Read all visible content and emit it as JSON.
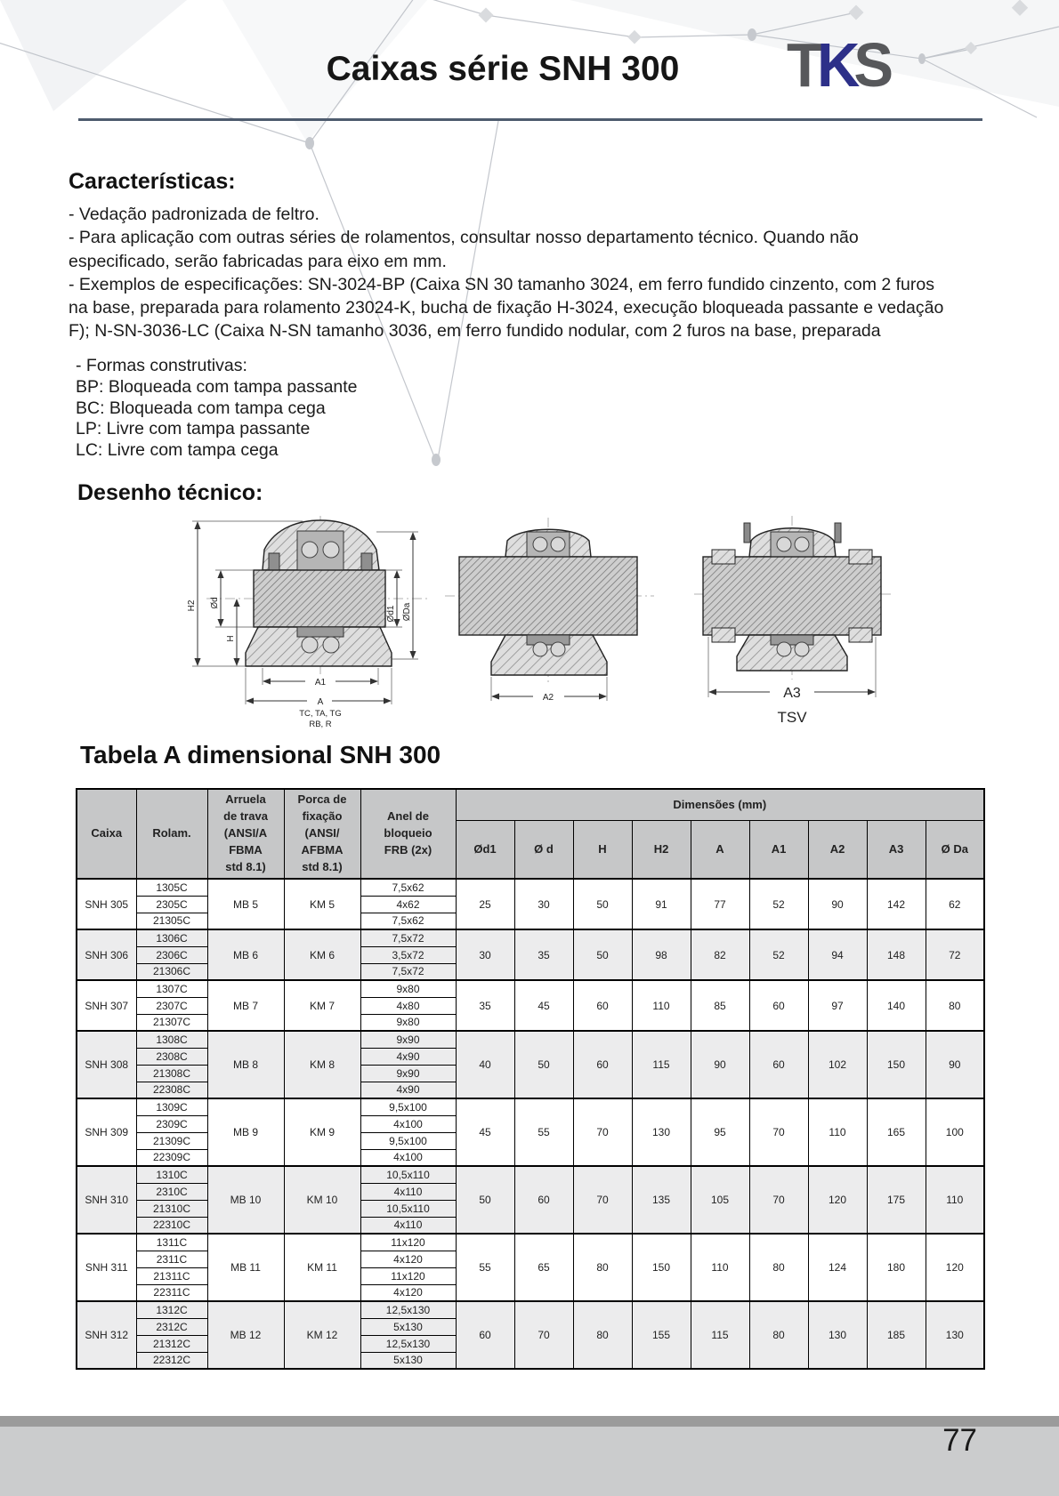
{
  "header": {
    "title": "Caixas série SNH 300",
    "logo": {
      "t": "T",
      "k": "K",
      "s": "S"
    }
  },
  "caracteristicas": {
    "heading": "Características:",
    "lines": [
      "- Vedação padronizada de feltro.",
      "- Para aplicação com outras séries de rolamentos, consultar nosso departamento técnico. Quando não",
      "especificado, serão fabricadas para eixo em mm.",
      "- Exemplos de especificações: SN-3024-BP (Caixa SN 30 tamanho 3024, em ferro fundido cinzento, com 2 furos",
      "na base, preparada para rolamento 23024-K, bucha de fixação H-3024, execução bloqueada passante e vedação",
      "F); N-SN-3036-LC (Caixa N-SN tamanho 3036, em ferro fundido nodular, com 2 furos na base, preparada"
    ],
    "formas_heading": "- Formas construtivas:",
    "formas": [
      "BP: Bloqueada com tampa passante",
      "BC: Bloqueada com tampa cega",
      "LP: Livre com tampa passante",
      "LC: Livre com tampa cega"
    ]
  },
  "desenho": {
    "heading": "Desenho técnico:",
    "d1": {
      "h2": "H2",
      "od": "Ød",
      "h": "H",
      "od1": "Ød1",
      "oda": "ØDa",
      "a1": "A1",
      "a": "A",
      "sub1": "TC, TA, TG",
      "sub2": "RB, R"
    },
    "d2": {
      "a2": "A2"
    },
    "d3": {
      "a3": "A3",
      "label": "TSV"
    }
  },
  "tabela": {
    "heading": "Tabela A dimensional SNH 300",
    "col_caixa": "Caixa",
    "col_rolam": "Rolam.",
    "col_arruela": "Arruela\nde trava\n(ANSI/A\nFBMA\nstd 8.1)",
    "col_porca": "Porca de\nfixação\n(ANSI/\nAFBMA\nstd 8.1)",
    "col_anel": "Anel de\nbloqueio\nFRB (2x)",
    "col_dim_group": "Dimensões (mm)",
    "dim_cols": [
      "Ød1",
      "Ø d",
      "H",
      "H2",
      "A",
      "A1",
      "A2",
      "A3",
      "Ø Da"
    ],
    "rows": [
      {
        "caixa": "SNH 305",
        "rolam": [
          "1305C",
          "2305C",
          "21305C"
        ],
        "arruela": "MB 5",
        "porca": "KM 5",
        "anel": [
          "7,5x62",
          "4x62",
          "7,5x62"
        ],
        "dims": [
          "25",
          "30",
          "50",
          "91",
          "77",
          "52",
          "90",
          "142",
          "62"
        ]
      },
      {
        "caixa": "SNH 306",
        "rolam": [
          "1306C",
          "2306C",
          "21306C"
        ],
        "arruela": "MB 6",
        "porca": "KM 6",
        "anel": [
          "7,5x72",
          "3,5x72",
          "7,5x72"
        ],
        "dims": [
          "30",
          "35",
          "50",
          "98",
          "82",
          "52",
          "94",
          "148",
          "72"
        ]
      },
      {
        "caixa": "SNH 307",
        "rolam": [
          "1307C",
          "2307C",
          "21307C"
        ],
        "arruela": "MB 7",
        "porca": "KM 7",
        "anel": [
          "9x80",
          "4x80",
          "9x80"
        ],
        "dims": [
          "35",
          "45",
          "60",
          "110",
          "85",
          "60",
          "97",
          "140",
          "80"
        ]
      },
      {
        "caixa": "SNH 308",
        "rolam": [
          "1308C",
          "2308C",
          "21308C",
          "22308C"
        ],
        "arruela": "MB 8",
        "porca": "KM 8",
        "anel": [
          "9x90",
          "4x90",
          "9x90",
          "4x90"
        ],
        "dims": [
          "40",
          "50",
          "60",
          "115",
          "90",
          "60",
          "102",
          "150",
          "90"
        ]
      },
      {
        "caixa": "SNH 309",
        "rolam": [
          "1309C",
          "2309C",
          "21309C",
          "22309C"
        ],
        "arruela": "MB 9",
        "porca": "KM 9",
        "anel": [
          "9,5x100",
          "4x100",
          "9,5x100",
          "4x100"
        ],
        "dims": [
          "45",
          "55",
          "70",
          "130",
          "95",
          "70",
          "110",
          "165",
          "100"
        ]
      },
      {
        "caixa": "SNH 310",
        "rolam": [
          "1310C",
          "2310C",
          "21310C",
          "22310C"
        ],
        "arruela": "MB 10",
        "porca": "KM 10",
        "anel": [
          "10,5x110",
          "4x110",
          "10,5x110",
          "4x110"
        ],
        "dims": [
          "50",
          "60",
          "70",
          "135",
          "105",
          "70",
          "120",
          "175",
          "110"
        ]
      },
      {
        "caixa": "SNH 311",
        "rolam": [
          "1311C",
          "2311C",
          "21311C",
          "22311C"
        ],
        "arruela": "MB 11",
        "porca": "KM 11",
        "anel": [
          "11x120",
          "4x120",
          "11x120",
          "4x120"
        ],
        "dims": [
          "55",
          "65",
          "80",
          "150",
          "110",
          "80",
          "124",
          "180",
          "120"
        ]
      },
      {
        "caixa": "SNH 312",
        "rolam": [
          "1312C",
          "2312C",
          "21312C",
          "22312C"
        ],
        "arruela": "MB 12",
        "porca": "KM 12",
        "anel": [
          "12,5x130",
          "5x130",
          "12,5x130",
          "5x130"
        ],
        "dims": [
          "60",
          "70",
          "80",
          "155",
          "115",
          "80",
          "130",
          "185",
          "130"
        ]
      }
    ]
  },
  "footer": {
    "page_number": "77"
  },
  "colors": {
    "rule": "#4e5b6e",
    "logo_k": "#2d3089",
    "logo_ts": "#57585b",
    "table_header_bg": "#c6c7c8"
  }
}
